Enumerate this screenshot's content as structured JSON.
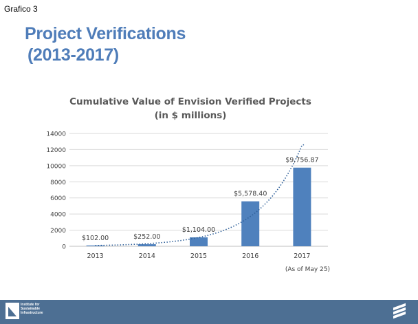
{
  "page": {
    "corner_label": "Grafico 3",
    "title_line1": "Project Verifications",
    "title_line2": "(2013-2017)",
    "footer_logo_text": "Institute for Sustainable Infrastructure"
  },
  "colors": {
    "title": "#4f7db9",
    "bar": "#4f81bd",
    "trend": "#2e5f99",
    "footer": "#4d6f93"
  },
  "chart_data": {
    "type": "bar",
    "title": "Cumulative Value of Envision Verified Projects",
    "subtitle": "(in $ millions)",
    "categories": [
      "2013",
      "2014",
      "2015",
      "2016",
      "2017"
    ],
    "values": [
      102.0,
      252.0,
      1104.0,
      5578.4,
      9756.87
    ],
    "data_labels": [
      "$102.00",
      "$252.00",
      "$1,104.00",
      "$5,578.40",
      "$9,756.87"
    ],
    "y_ticks": [
      "0",
      "2000",
      "4000",
      "6000",
      "8000",
      "10000",
      "12000",
      "14000"
    ],
    "ylim": [
      0,
      14000
    ],
    "grid": true,
    "trendline": "exponential, dotted",
    "note": "(As of May 25)"
  }
}
